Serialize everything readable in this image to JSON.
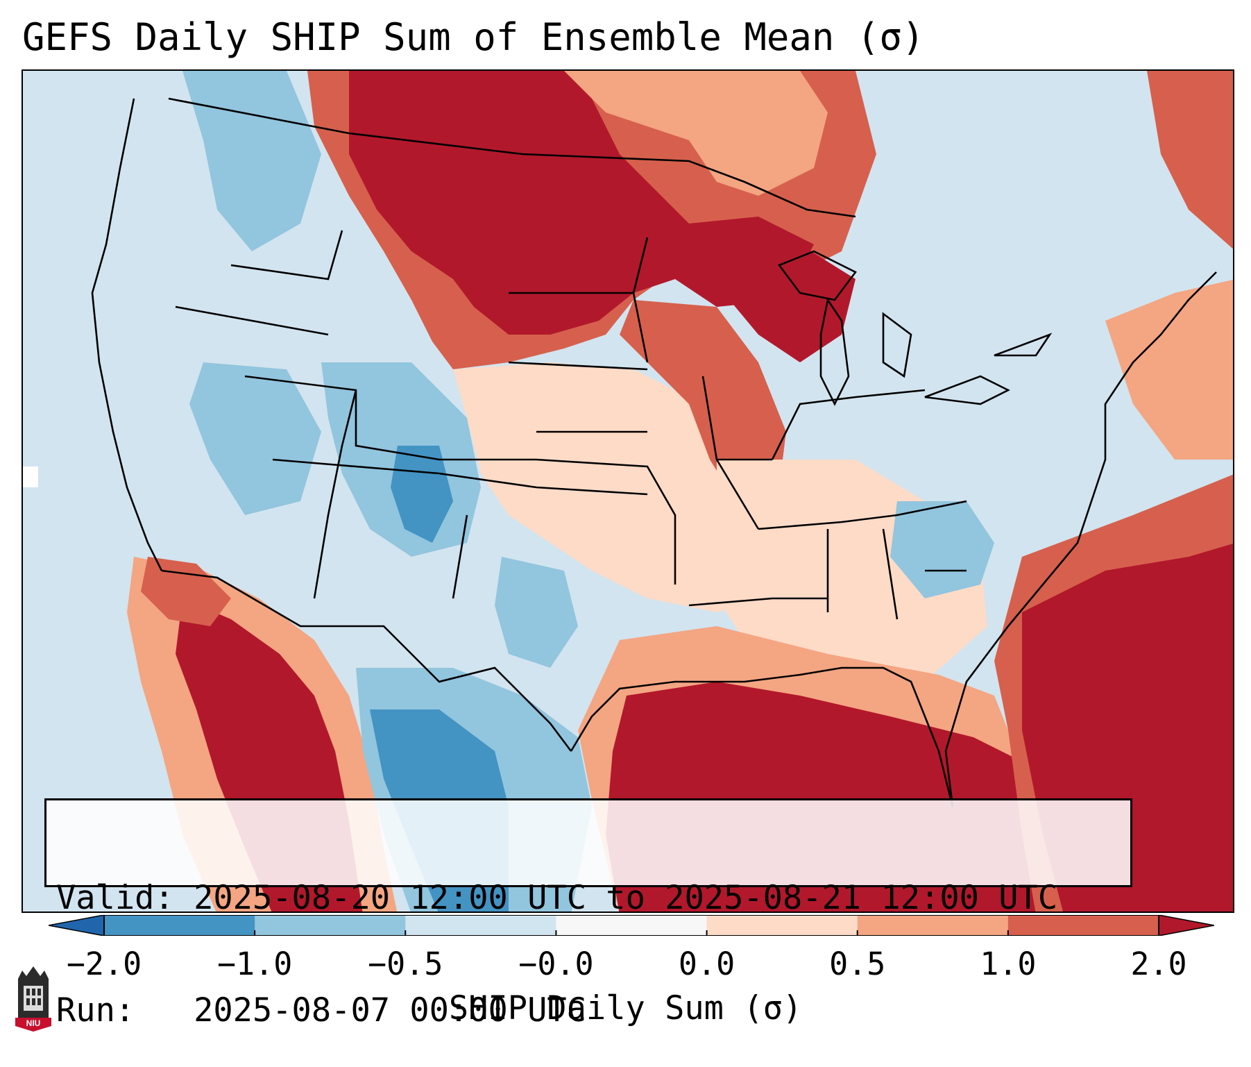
{
  "title": "GEFS Daily SHIP Sum of Ensemble Mean (σ)",
  "infobox": {
    "valid_label": "Valid:",
    "valid_value": "2025-08-20 12:00 UTC to 2025-08-21 12:00 UTC",
    "run_label": "Run:",
    "run_value": "2025-08-07 00:00 UTC"
  },
  "colorbar": {
    "label": "SHIP Daily Sum (σ)",
    "ticks": [
      "−2.0",
      "−1.0",
      "−0.5",
      "−0.0",
      "0.0",
      "0.5",
      "1.0",
      "2.0"
    ],
    "colors": [
      "#4393c3",
      "#92c5de",
      "#d1e5f0",
      "#f7f7f7",
      "#fddbc7",
      "#f4a582",
      "#d6604d",
      "#b2182b"
    ],
    "extend_low_color": "#2166ac",
    "extend_high_color": "#b2182b"
  },
  "logo": {
    "text": "NIU"
  },
  "colors": {
    "strong_positive": "#b2182b",
    "positive": "#d6604d",
    "weak_positive": "#f4a582",
    "slight_positive": "#fddbc7",
    "slight_negative": "#d1e5f0",
    "weak_negative": "#92c5de",
    "negative": "#4393c3",
    "strong_negative": "#2166ac"
  }
}
